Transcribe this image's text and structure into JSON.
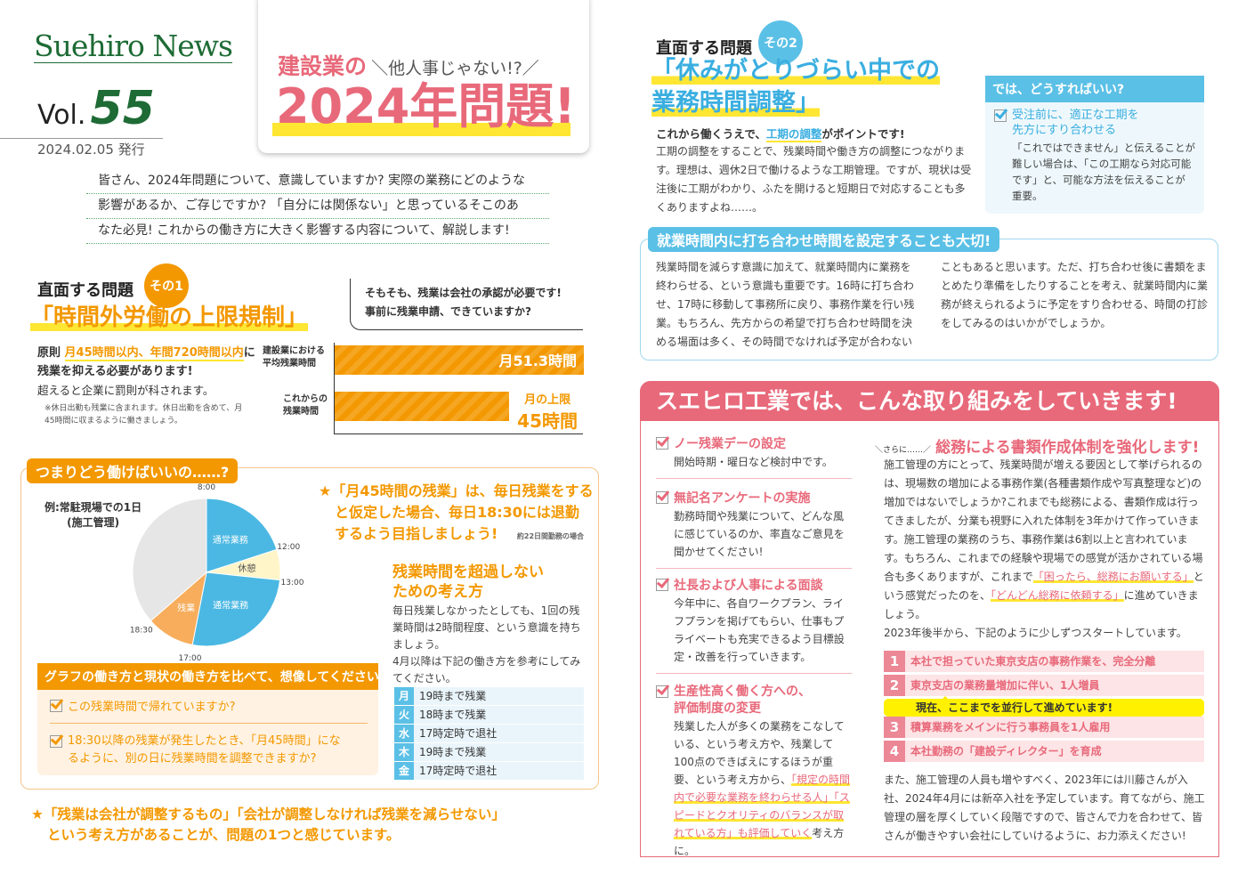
{
  "masthead": {
    "logo": "Suehiro News",
    "vol_label": "Vol.",
    "vol_number": "55",
    "date": "2024.02.05 発行"
  },
  "headline": {
    "lead": "建設業の",
    "aside": "＼他人事じゃない!?／",
    "title": "2024年問題!"
  },
  "intro": [
    "皆さん、2024年問題について、意識していますか? 実際の業務にどのような",
    "影響があるか、ご存じですか? 「自分には関係ない」と思っているそこのあ",
    "なた必見! これからの働き方に大きく影響する内容について、解説します!"
  ],
  "problem1": {
    "label": "直面する問題",
    "badge": "その1",
    "title": "「時間外労働の上限規制」",
    "rule_prefix": "原則 ",
    "rule_highlight": "月45時間以内、年間720時間以内",
    "rule_suffix": "に",
    "rule_line2": "残業を抑える必要があります!",
    "penalty": "超えると企業に罰則が科されます。",
    "note": "※休日出勤も残業に含まれます。休日出勤を含めて、月45時間に収まるように働きましょう。",
    "bubble": [
      "そもそも、残業は会社の承認が必要です!",
      "事前に残業申請、できていますか?"
    ],
    "chart": {
      "bars": [
        {
          "label": "建設業における平均残業時間",
          "value": 51.3,
          "value_label": "月51.3時間"
        },
        {
          "label": "これからの残業時間",
          "value": 45,
          "value_label_top": "月の上限",
          "value_label": "45時間"
        }
      ]
    }
  },
  "howto": {
    "tab": "つまりどう働けばいいの……?",
    "example": "例:常駐現場での1日",
    "example_sub": "(施工管理)",
    "chart_data": {
      "type": "pie",
      "segments": [
        {
          "label": "通常業務",
          "from": "8:00",
          "to": "12:00",
          "color": "#4bb8e3"
        },
        {
          "label": "休憩",
          "from": "12:00",
          "to": "13:00",
          "color": "#fff5c8"
        },
        {
          "label": "通常業務",
          "from": "13:00",
          "to": "17:00",
          "color": "#4bb8e3"
        },
        {
          "label": "残業",
          "from": "17:00",
          "to": "18:30",
          "color": "#f7ad5b"
        },
        {
          "label": "",
          "from": "18:30",
          "to": "8:00",
          "color": "#e6e6e6"
        }
      ],
      "ticks": [
        "8:00",
        "12:00",
        "13:00",
        "17:00",
        "18:30"
      ]
    },
    "star": [
      "★「月45時間の残業」は、毎日残業をする",
      "と仮定した場合、毎日18:30には退勤",
      "するよう目指しましょう!"
    ],
    "star_note": "約22日間勤務の場合",
    "think_title": [
      "残業時間を超過しない",
      "ための考え方"
    ],
    "think_body": "毎日残業しなかったとしても、1回の残業時間は2時間程度、という意識を持ちましょう。",
    "think_body2": "4月以降は下記の働き方を参考にしてみてください。",
    "week": [
      {
        "day": "月",
        "plan": "19時まで残業"
      },
      {
        "day": "火",
        "plan": "18時まで残業"
      },
      {
        "day": "水",
        "plan": "17時定時で退社"
      },
      {
        "day": "木",
        "plan": "19時まで残業"
      },
      {
        "day": "金",
        "plan": "17時定時で退社"
      }
    ],
    "compare_title": "グラフの働き方と現状の働き方を比べて、想像してください",
    "checks": [
      "この残業時間で帰れていますか?",
      "18:30以降の残業が発生したとき、「月45時間」になるように、別の日に残業時間を調整できますか?"
    ]
  },
  "closing": [
    "★「残業は会社が調整するもの」「会社が調整しなければ残業を減らせない」",
    "という考え方があることが、問題の1つと感じています。"
  ],
  "problem2": {
    "label": "直面する問題",
    "badge": "その2",
    "title1": "「休みがとりづらい中での",
    "title2": "業務時間調整」",
    "lead_a": "これから働くうえで、",
    "lead_hl": "工期の調整",
    "lead_b": "がポイントです!",
    "body": "工期の調整をすることで、残業時間や働き方の調整につながります。理想は、週休2日で働けるような工期管理。ですが、現状は受注後に工期がわかり、ふたを開けると短期日で対応することも多くありますよね……。",
    "box_title": "では、どうすればいい?",
    "box_check": "受注前に、適正な工期を先方にすり合わせる",
    "box_body": "「これではできません」と伝えることが難しい場合は、「この工期なら対応可能です」と、可能な方法を伝えることが重要。",
    "meeting_tab": "就業時間内に打ち合わせ時間を設定することも大切!",
    "meeting_col1": "残業時間を減らす意識に加えて、就業時間内に業務を終わらせる、という意識も重要です。16時に打ち合わせ、17時に移動して事務所に戻り、事務作業を行い残業。もちろん、先方からの希望で打ち合わせ時間を決める場面は多く、その時間でなければ予定が合わない",
    "meeting_col2": "こともあると思います。ただ、打ち合わせ後に書類をまとめたり準備をしたりすることを考え、就業時間内に業務が終えられるように予定をすり合わせる、時間の打診をしてみるのはいかがでしょうか。"
  },
  "initiatives": {
    "title": "スエヒロ工業では、こんな取り組みをしていきます!",
    "items": [
      {
        "title": "ノー残業デーの設定",
        "body": "開始時期・曜日など検討中です。"
      },
      {
        "title": "無記名アンケートの実施",
        "body": "勤務時間や残業について、どんな風に感じているのか、率直なご意見を聞かせてください!"
      },
      {
        "title": "社長および人事による面談",
        "body": "今年中に、各自ワークプラン、ライフプランを掲げてもらい、仕事もプライベートも充実できるよう目標設定・改善を行っていきます。"
      },
      {
        "title": "生産性高く働く方への、評価制度の変更",
        "body": "残業した人が多くの業務をこなしている、という考え方や、残業して100点のできばえにするほうが重要、という考え方から、",
        "body_hl": "「規定の時間内で必要な業務を終わらせる人」「スピードとクオリティのバランスが取れている方」も評価していく",
        "body_end": "考え方に。"
      }
    ],
    "more_label": "＼さらに……／",
    "more_title": "総務による書類作成体制を強化します!",
    "more_body_a": "施工管理の方にとって、残業時間が増える要因として挙げられるのは、現場数の増加による事務作業(各種書類作成や写真整理など)の増加ではないでしょうか?これまでも総務による、書類作成は行ってきましたが、分業も視野に入れた体制を3年かけて作っていきます。施工管理の業務のうち、事務作業は6割以上と言われています。もちろん、これまでの経験や現場での感覚が活かされている場合も多くありますが、これまで",
    "more_hl1": "「困ったら、総務にお願いする」",
    "more_body_b": "という感覚だったのを、",
    "more_hl2": "「どんどん総務に依頼する」",
    "more_body_c": "に進めていきましょう。",
    "more_body_d": "2023年後半から、下記のように少しずつスタートしています。",
    "steps": [
      {
        "n": "1",
        "text": "本社で担っていた東京支店の事務作業を、完全分離"
      },
      {
        "n": "2",
        "text": "東京支店の業務量増加に伴い、1人増員"
      },
      {
        "n": "3",
        "text": "積算業務をメインに行う事務員を1人雇用"
      },
      {
        "n": "4",
        "text": "本社勤務の「建設ディレクター」を育成"
      }
    ],
    "progress_note": "現在、ここまでを並行して進めています!",
    "closing": "また、施工管理の人員も増やすべく、2023年には川藤さんが入社、2024年4月には新卒入社を予定しています。育てながら、施工管理の層を厚くしていく段階ですので、皆さんで力を合わせて、皆さんが働きやすい会社にしていけるように、お力添えください!"
  },
  "colors": {
    "orange": "#f39800",
    "pink": "#e8697a",
    "blue": "#4bb8e3",
    "green": "#1e6b35",
    "yellow": "#ffe633"
  }
}
